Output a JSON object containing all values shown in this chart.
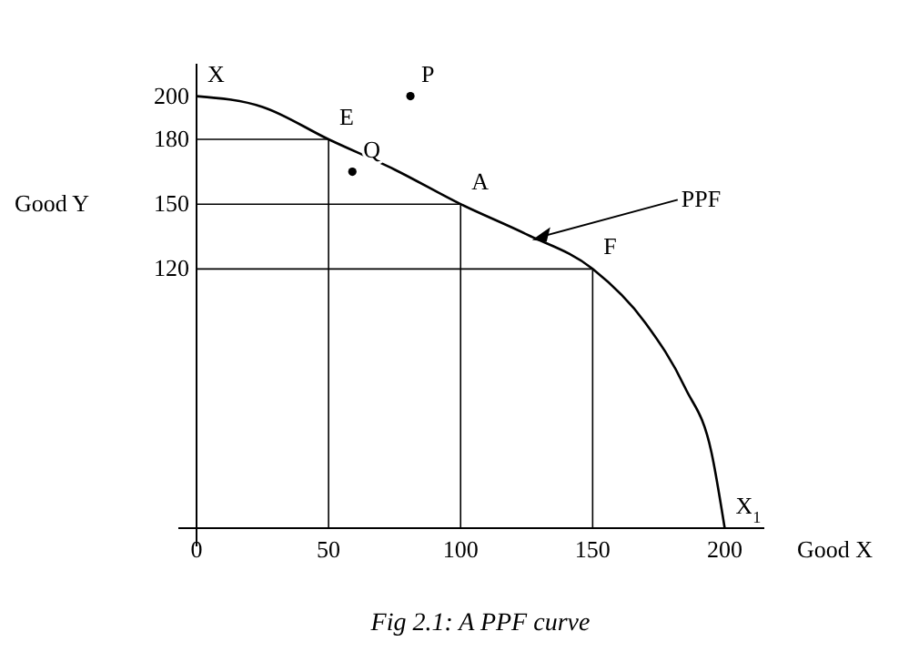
{
  "chart_data": {
    "type": "line",
    "xlabel": "Good X",
    "ylabel": "Good Y",
    "xlim": [
      0,
      215
    ],
    "ylim": [
      0,
      215
    ],
    "xticks": [
      0,
      50,
      100,
      150,
      200
    ],
    "yticks": [
      120,
      150,
      180,
      200
    ],
    "marker": "none",
    "line_style": "solid",
    "series": [
      {
        "name": "PPF",
        "color": "#000000",
        "x": [
          0,
          25,
          50,
          75,
          100,
          125,
          150,
          170,
          185,
          195,
          200
        ],
        "values": [
          200,
          195,
          180,
          166,
          150,
          136,
          120,
          95,
          65,
          35,
          0
        ]
      },
      {
        "color": "#000000",
        "x": [
          0,
          50,
          50
        ],
        "values": [
          180,
          180,
          0
        ]
      },
      {
        "color": "#000000",
        "x": [
          0,
          100,
          100
        ],
        "values": [
          150,
          150,
          0
        ]
      },
      {
        "color": "#000000",
        "x": [
          0,
          150,
          150
        ],
        "values": [
          120,
          120,
          0
        ]
      },
      {
        "type": "scatter",
        "marker": "circle",
        "color": "#000000",
        "x": [
          81,
          59
        ],
        "values": [
          200,
          165
        ]
      }
    ],
    "annotations": [
      {
        "text": "X",
        "x": 0,
        "y": 200
      },
      {
        "text": "E",
        "x": 50,
        "y": 180
      },
      {
        "text": "A",
        "x": 100,
        "y": 150
      },
      {
        "text": "F",
        "x": 150,
        "y": 120
      },
      {
        "text": "X$_{1}$",
        "x": 200,
        "y": 0
      },
      {
        "text": "P",
        "x": 81,
        "y": 200
      },
      {
        "text": "Q",
        "x": 59,
        "y": 165
      },
      "Fig 2.1: A PPF curve"
    ]
  }
}
